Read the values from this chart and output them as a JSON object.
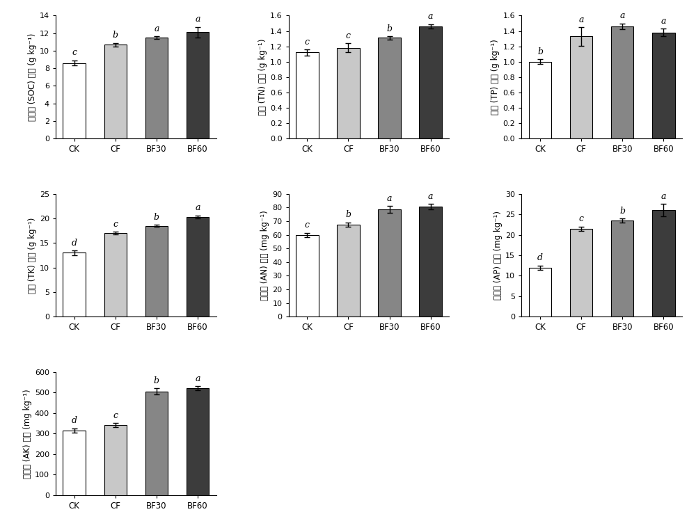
{
  "categories": [
    "CK",
    "CF",
    "BF30",
    "BF60"
  ],
  "bar_colors": [
    "#ffffff",
    "#c8c8c8",
    "#868686",
    "#3c3c3c"
  ],
  "bar_edgecolor": "#000000",
  "subplots": [
    {
      "ylabel": "有机碳 (SOC) 含量 (g kg⁻¹)",
      "values": [
        8.6,
        10.7,
        11.5,
        12.1
      ],
      "errors": [
        0.3,
        0.2,
        0.15,
        0.6
      ],
      "letters": [
        "c",
        "b",
        "a",
        "a"
      ],
      "ylim": [
        0,
        14
      ],
      "yticks": [
        0,
        2,
        4,
        6,
        8,
        10,
        12,
        14
      ]
    },
    {
      "ylabel": "全氮 (TN) 含量 (g kg⁻¹)",
      "values": [
        1.12,
        1.18,
        1.31,
        1.46
      ],
      "errors": [
        0.04,
        0.06,
        0.02,
        0.03
      ],
      "letters": [
        "c",
        "c",
        "b",
        "a"
      ],
      "ylim": [
        0.0,
        1.6
      ],
      "yticks": [
        0.0,
        0.2,
        0.4,
        0.6,
        0.8,
        1.0,
        1.2,
        1.4,
        1.6
      ]
    },
    {
      "ylabel": "全燕 (TP) 含量 (g kg⁻¹)",
      "values": [
        1.0,
        1.33,
        1.46,
        1.38
      ],
      "errors": [
        0.03,
        0.12,
        0.04,
        0.05
      ],
      "letters": [
        "b",
        "a",
        "a",
        "a"
      ],
      "ylim": [
        0.0,
        1.6
      ],
      "yticks": [
        0.0,
        0.2,
        0.4,
        0.6,
        0.8,
        1.0,
        1.2,
        1.4,
        1.6
      ]
    },
    {
      "ylabel": "全钉 (TK) 含量 (g kg⁻¹)",
      "values": [
        13.0,
        17.0,
        18.5,
        20.3
      ],
      "errors": [
        0.5,
        0.3,
        0.2,
        0.3
      ],
      "letters": [
        "d",
        "c",
        "b",
        "a"
      ],
      "ylim": [
        0,
        25
      ],
      "yticks": [
        0,
        5,
        10,
        15,
        20,
        25
      ]
    },
    {
      "ylabel": "碱解氮 (AN) 含量 (mg kg⁻¹)",
      "values": [
        60.0,
        67.5,
        78.5,
        80.5
      ],
      "errors": [
        1.5,
        1.5,
        2.5,
        2.0
      ],
      "letters": [
        "c",
        "b",
        "a",
        "a"
      ],
      "ylim": [
        0,
        90
      ],
      "yticks": [
        0,
        10,
        20,
        30,
        40,
        50,
        60,
        70,
        80,
        90
      ]
    },
    {
      "ylabel": "有效燕 (AP) 含量 (mg kg⁻¹)",
      "values": [
        12.0,
        21.5,
        23.5,
        26.0
      ],
      "errors": [
        0.5,
        0.5,
        0.5,
        1.5
      ],
      "letters": [
        "d",
        "c",
        "b",
        "a"
      ],
      "ylim": [
        0,
        30
      ],
      "yticks": [
        0,
        5,
        10,
        15,
        20,
        25,
        30
      ]
    },
    {
      "ylabel": "速效钉 (AK) 含量 (mg kg⁻¹)",
      "values": [
        315.0,
        340.0,
        505.0,
        520.0
      ],
      "errors": [
        10.0,
        10.0,
        15.0,
        10.0
      ],
      "letters": [
        "d",
        "c",
        "b",
        "a"
      ],
      "ylim": [
        0,
        600
      ],
      "yticks": [
        0,
        100,
        200,
        300,
        400,
        500,
        600
      ]
    }
  ]
}
